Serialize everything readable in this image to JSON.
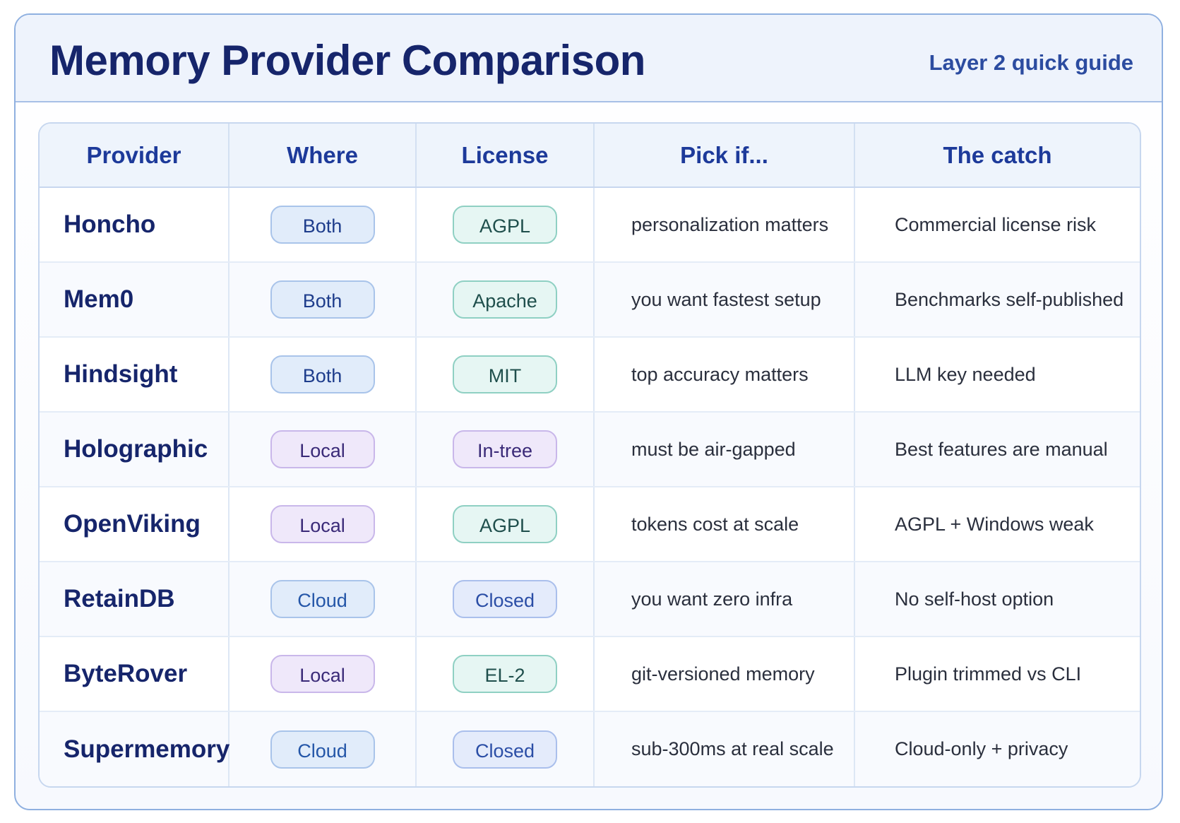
{
  "header": {
    "title": "Memory Provider Comparison",
    "subtitle": "Layer 2 quick guide"
  },
  "table": {
    "columns": [
      "Provider",
      "Where",
      "License",
      "Pick if...",
      "The catch"
    ],
    "rows": [
      {
        "provider": "Honcho",
        "where": "Both",
        "license": "AGPL",
        "pick_if": "personalization matters",
        "catch": "Commercial license risk"
      },
      {
        "provider": "Mem0",
        "where": "Both",
        "license": "Apache",
        "pick_if": "you want fastest setup",
        "catch": "Benchmarks self-published"
      },
      {
        "provider": "Hindsight",
        "where": "Both",
        "license": "MIT",
        "pick_if": "top accuracy matters",
        "catch": "LLM key needed"
      },
      {
        "provider": "Holographic",
        "where": "Local",
        "license": "In-tree",
        "pick_if": "must be air-gapped",
        "catch": "Best features are manual"
      },
      {
        "provider": "OpenViking",
        "where": "Local",
        "license": "AGPL",
        "pick_if": "tokens cost at scale",
        "catch": "AGPL + Windows weak"
      },
      {
        "provider": "RetainDB",
        "where": "Cloud",
        "license": "Closed",
        "pick_if": "you want zero infra",
        "catch": "No self-host option"
      },
      {
        "provider": "ByteRover",
        "where": "Local",
        "license": "EL-2",
        "pick_if": "git-versioned memory",
        "catch": "Plugin trimmed vs CLI"
      },
      {
        "provider": "Supermemory",
        "where": "Cloud",
        "license": "Closed",
        "pick_if": "sub-300ms at real scale",
        "catch": "Cloud-only + privacy"
      }
    ]
  },
  "colors": {
    "title": "#16256b",
    "header_text": "#1d3a9a",
    "pill_blue": "#e1ecfa",
    "pill_violet": "#efe8fa",
    "pill_mint": "#e6f6f3",
    "border": "#8fb0e0"
  }
}
